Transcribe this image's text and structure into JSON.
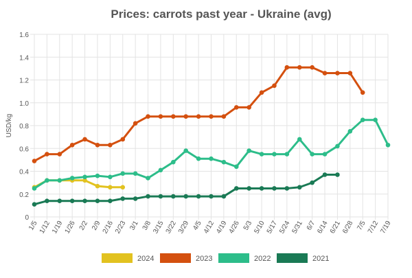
{
  "chart_data": {
    "type": "line",
    "title": "Prices: carrots past year - Ukraine (avg)",
    "xlabel": "",
    "ylabel": "USD/kg",
    "ylim": [
      0,
      1.6
    ],
    "yticks": [
      "0",
      "0.2",
      "0.4",
      "0.6",
      "0.8",
      "1.0",
      "1.2",
      "1.4",
      "1.6"
    ],
    "grid": true,
    "legend_position": "bottom-center",
    "categories": [
      "1/5",
      "1/12",
      "1/19",
      "1/26",
      "2/2",
      "2/9",
      "2/16",
      "2/23",
      "3/1",
      "3/8",
      "3/15",
      "3/22",
      "3/29",
      "4/5",
      "4/12",
      "4/19",
      "4/26",
      "5/3",
      "5/10",
      "5/17",
      "5/24",
      "5/31",
      "6/7",
      "6/14",
      "6/21",
      "6/28",
      "7/5",
      "7/12",
      "7/19"
    ],
    "series": [
      {
        "name": "2024",
        "color": "#e2c220",
        "values": [
          0.26,
          0.32,
          0.32,
          0.32,
          0.32,
          0.27,
          0.26,
          0.26,
          null,
          null,
          null,
          null,
          null,
          null,
          null,
          null,
          null,
          null,
          null,
          null,
          null,
          null,
          null,
          null,
          null,
          null,
          null,
          null,
          null
        ]
      },
      {
        "name": "2023",
        "color": "#d4500f",
        "values": [
          0.49,
          0.55,
          0.55,
          0.63,
          0.68,
          0.63,
          0.63,
          0.68,
          0.82,
          0.88,
          0.88,
          0.88,
          0.88,
          0.88,
          0.88,
          0.88,
          0.96,
          0.96,
          1.09,
          1.15,
          1.31,
          1.31,
          1.31,
          1.26,
          1.26,
          1.26,
          1.09,
          null,
          null
        ]
      },
      {
        "name": "2022",
        "color": "#2dbd8a",
        "values": [
          0.25,
          0.32,
          0.32,
          0.34,
          0.35,
          0.36,
          0.35,
          0.38,
          0.38,
          0.34,
          0.41,
          0.48,
          0.58,
          0.51,
          0.51,
          0.48,
          0.44,
          0.58,
          0.55,
          0.55,
          0.55,
          0.68,
          0.55,
          0.55,
          0.62,
          0.75,
          0.85,
          0.85,
          0.63
        ]
      },
      {
        "name": "2021",
        "color": "#1a7a55",
        "values": [
          0.11,
          0.14,
          0.14,
          0.14,
          0.14,
          0.14,
          0.14,
          0.16,
          0.16,
          0.18,
          0.18,
          0.18,
          0.18,
          0.18,
          0.18,
          0.18,
          0.25,
          0.25,
          0.25,
          0.25,
          0.25,
          0.26,
          0.3,
          0.37,
          0.37,
          null,
          null,
          null,
          null
        ]
      }
    ]
  }
}
